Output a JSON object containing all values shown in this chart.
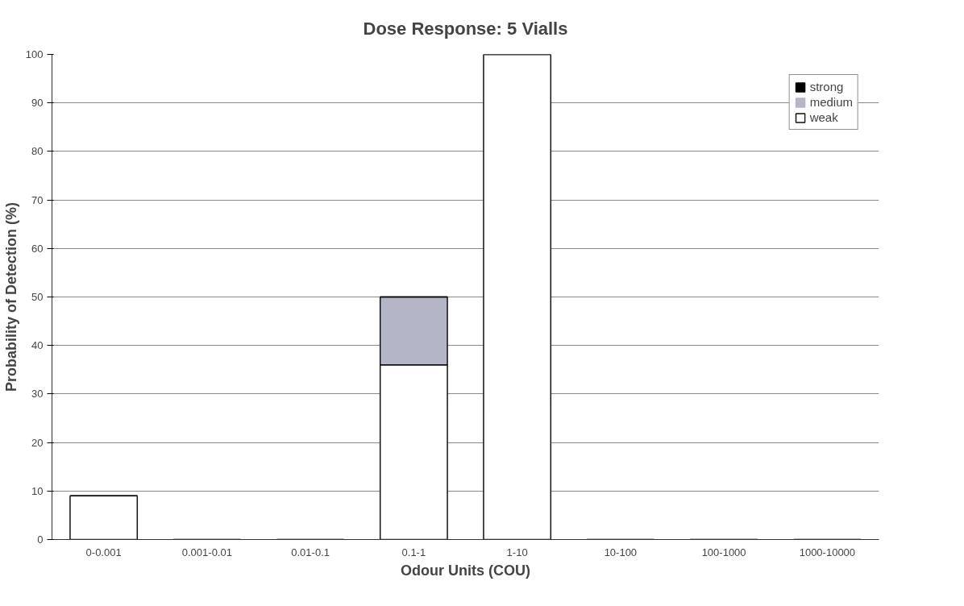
{
  "chart_data": {
    "type": "bar",
    "title": "Dose Response: 5 Vialls",
    "xlabel": "Odour Units (COU)",
    "ylabel": "Probability of Detection (%)",
    "categories": [
      "0-0.001",
      "0.001-0.01",
      "0.01-0.1",
      "0.1-1",
      "1-10",
      "10-100",
      "100-1000",
      "1000-10000"
    ],
    "stacked": true,
    "series": [
      {
        "name": "weak",
        "color": "#ffffff",
        "values": [
          9,
          0,
          0,
          36,
          100,
          0,
          0,
          0
        ]
      },
      {
        "name": "medium",
        "color": "#b4b6c8",
        "values": [
          0,
          0,
          0,
          14,
          0,
          0,
          0,
          0
        ]
      },
      {
        "name": "strong",
        "color": "#000000",
        "values": [
          0,
          0,
          0,
          0,
          0,
          0,
          0,
          0
        ]
      }
    ],
    "ylim": [
      0,
      100
    ],
    "yticks": [
      0,
      10,
      20,
      30,
      40,
      50,
      60,
      70,
      80,
      90,
      100
    ],
    "grid": "y",
    "legend": "top right"
  }
}
